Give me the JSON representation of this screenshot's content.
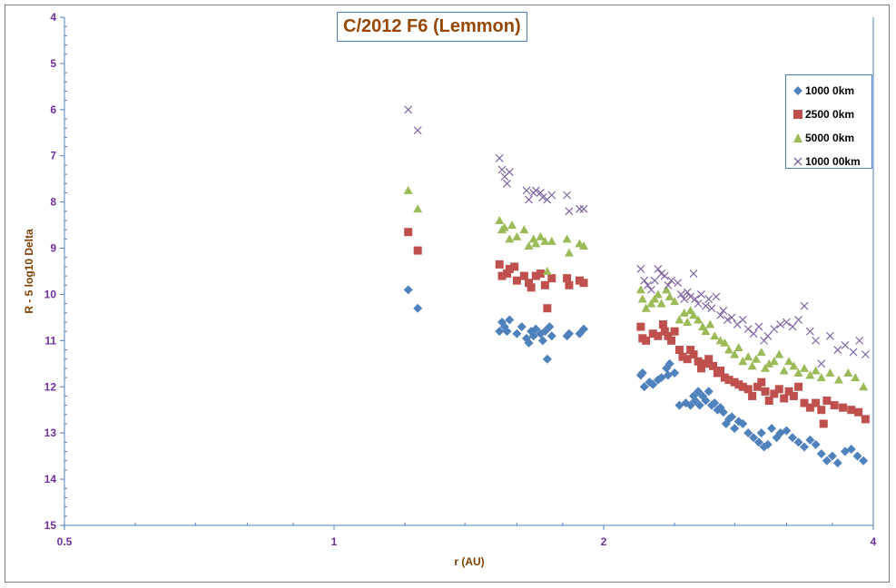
{
  "chart_data": {
    "type": "scatter",
    "title": "C/2012 F6 (Lemmon)",
    "xlabel": "r (AU)",
    "ylabel": "R - 5 log10 Delta",
    "x_scale": "log",
    "xlim": [
      0.5,
      4
    ],
    "ylim": [
      4,
      15
    ],
    "y_inverted": true,
    "x_ticks": [
      "0.5",
      "1",
      "2",
      "4"
    ],
    "y_ticks": [
      "4",
      "5",
      "6",
      "7",
      "8",
      "9",
      "10",
      "11",
      "12",
      "13",
      "14",
      "15"
    ],
    "grid": false,
    "legend_position": "right",
    "series": [
      {
        "name": "1000 0km",
        "marker": "diamond",
        "color": "#4F81BD",
        "points": [
          [
            1.21,
            9.9
          ],
          [
            1.24,
            10.3
          ],
          [
            1.53,
            10.8
          ],
          [
            1.54,
            10.6
          ],
          [
            1.55,
            10.7
          ],
          [
            1.56,
            10.8
          ],
          [
            1.57,
            10.55
          ],
          [
            1.6,
            10.85
          ],
          [
            1.62,
            10.7
          ],
          [
            1.64,
            10.95
          ],
          [
            1.65,
            11.05
          ],
          [
            1.66,
            10.8
          ],
          [
            1.67,
            10.9
          ],
          [
            1.68,
            10.75
          ],
          [
            1.7,
            10.85
          ],
          [
            1.71,
            11.0
          ],
          [
            1.72,
            10.8
          ],
          [
            1.73,
            11.4
          ],
          [
            1.74,
            10.7
          ],
          [
            1.75,
            10.9
          ],
          [
            1.82,
            10.9
          ],
          [
            1.83,
            10.85
          ],
          [
            1.88,
            10.85
          ],
          [
            1.9,
            10.75
          ],
          [
            2.2,
            11.75
          ],
          [
            2.21,
            11.7
          ],
          [
            2.22,
            12.0
          ],
          [
            2.25,
            11.9
          ],
          [
            2.27,
            11.95
          ],
          [
            2.3,
            11.85
          ],
          [
            2.32,
            11.8
          ],
          [
            2.35,
            11.6
          ],
          [
            2.36,
            11.75
          ],
          [
            2.37,
            11.5
          ],
          [
            2.4,
            11.7
          ],
          [
            2.43,
            12.4
          ],
          [
            2.47,
            12.35
          ],
          [
            2.5,
            12.4
          ],
          [
            2.52,
            12.2
          ],
          [
            2.53,
            12.3
          ],
          [
            2.55,
            12.1
          ],
          [
            2.56,
            12.4
          ],
          [
            2.58,
            12.2
          ],
          [
            2.6,
            12.3
          ],
          [
            2.62,
            12.1
          ],
          [
            2.64,
            12.4
          ],
          [
            2.66,
            12.35
          ],
          [
            2.68,
            12.5
          ],
          [
            2.7,
            12.45
          ],
          [
            2.72,
            12.55
          ],
          [
            2.74,
            12.8
          ],
          [
            2.76,
            12.7
          ],
          [
            2.78,
            12.65
          ],
          [
            2.8,
            12.9
          ],
          [
            2.83,
            12.75
          ],
          [
            2.86,
            12.8
          ],
          [
            2.9,
            13.0
          ],
          [
            2.94,
            13.1
          ],
          [
            2.98,
            13.2
          ],
          [
            3.0,
            13.0
          ],
          [
            3.02,
            13.3
          ],
          [
            3.05,
            13.25
          ],
          [
            3.08,
            12.9
          ],
          [
            3.12,
            13.1
          ],
          [
            3.15,
            13.0
          ],
          [
            3.2,
            12.95
          ],
          [
            3.25,
            13.1
          ],
          [
            3.3,
            13.2
          ],
          [
            3.35,
            13.3
          ],
          [
            3.4,
            13.15
          ],
          [
            3.45,
            13.25
          ],
          [
            3.5,
            13.45
          ],
          [
            3.55,
            13.6
          ],
          [
            3.6,
            13.5
          ],
          [
            3.65,
            13.65
          ],
          [
            3.72,
            13.4
          ],
          [
            3.78,
            13.35
          ],
          [
            3.84,
            13.5
          ],
          [
            3.9,
            13.6
          ]
        ]
      },
      {
        "name": "2500 0km",
        "marker": "square",
        "color": "#C0504D",
        "points": [
          [
            1.21,
            8.65
          ],
          [
            1.24,
            9.05
          ],
          [
            1.53,
            9.35
          ],
          [
            1.54,
            9.6
          ],
          [
            1.56,
            9.55
          ],
          [
            1.57,
            9.45
          ],
          [
            1.59,
            9.4
          ],
          [
            1.6,
            9.7
          ],
          [
            1.63,
            9.6
          ],
          [
            1.65,
            9.75
          ],
          [
            1.66,
            9.85
          ],
          [
            1.68,
            9.6
          ],
          [
            1.7,
            9.55
          ],
          [
            1.72,
            9.8
          ],
          [
            1.73,
            10.3
          ],
          [
            1.75,
            9.65
          ],
          [
            1.82,
            9.65
          ],
          [
            1.83,
            9.8
          ],
          [
            1.88,
            9.7
          ],
          [
            1.9,
            9.75
          ],
          [
            2.2,
            10.7
          ],
          [
            2.21,
            10.95
          ],
          [
            2.23,
            11.0
          ],
          [
            2.27,
            10.85
          ],
          [
            2.3,
            10.9
          ],
          [
            2.33,
            10.65
          ],
          [
            2.34,
            10.8
          ],
          [
            2.36,
            10.9
          ],
          [
            2.38,
            11.0
          ],
          [
            2.4,
            10.8
          ],
          [
            2.43,
            11.2
          ],
          [
            2.45,
            11.35
          ],
          [
            2.48,
            11.4
          ],
          [
            2.5,
            11.2
          ],
          [
            2.52,
            11.3
          ],
          [
            2.55,
            11.45
          ],
          [
            2.57,
            11.6
          ],
          [
            2.6,
            11.5
          ],
          [
            2.62,
            11.4
          ],
          [
            2.65,
            11.55
          ],
          [
            2.68,
            11.7
          ],
          [
            2.7,
            11.65
          ],
          [
            2.73,
            11.8
          ],
          [
            2.76,
            11.85
          ],
          [
            2.8,
            11.9
          ],
          [
            2.83,
            11.95
          ],
          [
            2.86,
            12.0
          ],
          [
            2.9,
            12.05
          ],
          [
            2.93,
            12.2
          ],
          [
            2.97,
            12.0
          ],
          [
            3.0,
            11.9
          ],
          [
            3.03,
            12.1
          ],
          [
            3.06,
            12.3
          ],
          [
            3.1,
            12.15
          ],
          [
            3.14,
            12.05
          ],
          [
            3.18,
            12.25
          ],
          [
            3.22,
            12.1
          ],
          [
            3.26,
            12.2
          ],
          [
            3.3,
            12.0
          ],
          [
            3.35,
            12.35
          ],
          [
            3.4,
            12.45
          ],
          [
            3.45,
            12.35
          ],
          [
            3.5,
            12.5
          ],
          [
            3.52,
            12.8
          ],
          [
            3.55,
            12.3
          ],
          [
            3.62,
            12.4
          ],
          [
            3.7,
            12.45
          ],
          [
            3.78,
            12.5
          ],
          [
            3.85,
            12.55
          ],
          [
            3.92,
            12.7
          ]
        ]
      },
      {
        "name": "5000 0km",
        "marker": "triangle",
        "color": "#9BBB59",
        "points": [
          [
            1.21,
            7.75
          ],
          [
            1.24,
            8.15
          ],
          [
            1.53,
            8.4
          ],
          [
            1.54,
            8.6
          ],
          [
            1.55,
            8.55
          ],
          [
            1.57,
            8.8
          ],
          [
            1.58,
            8.5
          ],
          [
            1.6,
            8.75
          ],
          [
            1.63,
            8.6
          ],
          [
            1.65,
            8.95
          ],
          [
            1.67,
            8.8
          ],
          [
            1.68,
            8.9
          ],
          [
            1.7,
            8.75
          ],
          [
            1.72,
            8.85
          ],
          [
            1.73,
            9.5
          ],
          [
            1.75,
            8.85
          ],
          [
            1.82,
            8.8
          ],
          [
            1.83,
            9.1
          ],
          [
            1.88,
            8.9
          ],
          [
            1.9,
            8.95
          ],
          [
            2.2,
            9.9
          ],
          [
            2.21,
            10.1
          ],
          [
            2.23,
            10.3
          ],
          [
            2.26,
            10.2
          ],
          [
            2.28,
            10.1
          ],
          [
            2.3,
            10.0
          ],
          [
            2.32,
            10.2
          ],
          [
            2.35,
            9.9
          ],
          [
            2.37,
            10.05
          ],
          [
            2.4,
            10.15
          ],
          [
            2.43,
            10.55
          ],
          [
            2.46,
            10.4
          ],
          [
            2.48,
            10.6
          ],
          [
            2.5,
            10.35
          ],
          [
            2.52,
            10.45
          ],
          [
            2.55,
            10.55
          ],
          [
            2.58,
            10.7
          ],
          [
            2.6,
            10.8
          ],
          [
            2.63,
            10.65
          ],
          [
            2.66,
            10.9
          ],
          [
            2.7,
            11.0
          ],
          [
            2.73,
            11.05
          ],
          [
            2.76,
            11.2
          ],
          [
            2.8,
            11.3
          ],
          [
            2.83,
            11.15
          ],
          [
            2.86,
            11.45
          ],
          [
            2.9,
            11.35
          ],
          [
            2.93,
            11.55
          ],
          [
            2.96,
            11.4
          ],
          [
            3.0,
            11.25
          ],
          [
            3.03,
            11.6
          ],
          [
            3.06,
            11.5
          ],
          [
            3.1,
            11.45
          ],
          [
            3.14,
            11.3
          ],
          [
            3.18,
            11.65
          ],
          [
            3.22,
            11.45
          ],
          [
            3.26,
            11.55
          ],
          [
            3.3,
            11.7
          ],
          [
            3.35,
            11.6
          ],
          [
            3.4,
            11.75
          ],
          [
            3.45,
            11.65
          ],
          [
            3.5,
            11.8
          ],
          [
            3.58,
            11.7
          ],
          [
            3.66,
            11.85
          ],
          [
            3.75,
            11.7
          ],
          [
            3.82,
            11.8
          ],
          [
            3.9,
            12.0
          ]
        ]
      },
      {
        "name": "1000 00km",
        "marker": "x",
        "color": "#8064A2",
        "points": [
          [
            1.21,
            6.0
          ],
          [
            1.24,
            6.45
          ],
          [
            1.53,
            7.05
          ],
          [
            1.54,
            7.3
          ],
          [
            1.55,
            7.45
          ],
          [
            1.56,
            7.6
          ],
          [
            1.57,
            7.35
          ],
          [
            1.64,
            7.75
          ],
          [
            1.65,
            7.95
          ],
          [
            1.67,
            7.8
          ],
          [
            1.68,
            7.75
          ],
          [
            1.7,
            7.8
          ],
          [
            1.71,
            7.9
          ],
          [
            1.73,
            7.95
          ],
          [
            1.75,
            7.85
          ],
          [
            1.82,
            7.85
          ],
          [
            1.83,
            8.2
          ],
          [
            1.88,
            8.15
          ],
          [
            1.9,
            8.15
          ],
          [
            2.2,
            9.45
          ],
          [
            2.22,
            9.7
          ],
          [
            2.24,
            9.8
          ],
          [
            2.26,
            9.9
          ],
          [
            2.28,
            9.7
          ],
          [
            2.3,
            9.45
          ],
          [
            2.32,
            9.55
          ],
          [
            2.34,
            9.6
          ],
          [
            2.36,
            9.8
          ],
          [
            2.38,
            9.7
          ],
          [
            2.42,
            9.75
          ],
          [
            2.44,
            10.0
          ],
          [
            2.46,
            10.1
          ],
          [
            2.48,
            9.95
          ],
          [
            2.5,
            10.05
          ],
          [
            2.52,
            9.55
          ],
          [
            2.53,
            10.1
          ],
          [
            2.55,
            10.2
          ],
          [
            2.57,
            10.0
          ],
          [
            2.6,
            10.25
          ],
          [
            2.62,
            10.1
          ],
          [
            2.64,
            10.3
          ],
          [
            2.67,
            10.05
          ],
          [
            2.7,
            10.45
          ],
          [
            2.72,
            10.35
          ],
          [
            2.75,
            10.55
          ],
          [
            2.78,
            10.5
          ],
          [
            2.82,
            10.65
          ],
          [
            2.86,
            10.55
          ],
          [
            2.9,
            10.75
          ],
          [
            2.94,
            10.85
          ],
          [
            2.98,
            10.7
          ],
          [
            3.02,
            11.0
          ],
          [
            3.05,
            10.9
          ],
          [
            3.1,
            10.75
          ],
          [
            3.15,
            10.65
          ],
          [
            3.2,
            10.6
          ],
          [
            3.25,
            10.7
          ],
          [
            3.3,
            10.55
          ],
          [
            3.35,
            10.25
          ],
          [
            3.4,
            10.8
          ],
          [
            3.45,
            11.0
          ],
          [
            3.5,
            11.5
          ],
          [
            3.58,
            10.9
          ],
          [
            3.65,
            11.2
          ],
          [
            3.72,
            11.1
          ],
          [
            3.8,
            11.25
          ],
          [
            3.86,
            11.0
          ],
          [
            3.92,
            11.3
          ]
        ]
      }
    ]
  }
}
